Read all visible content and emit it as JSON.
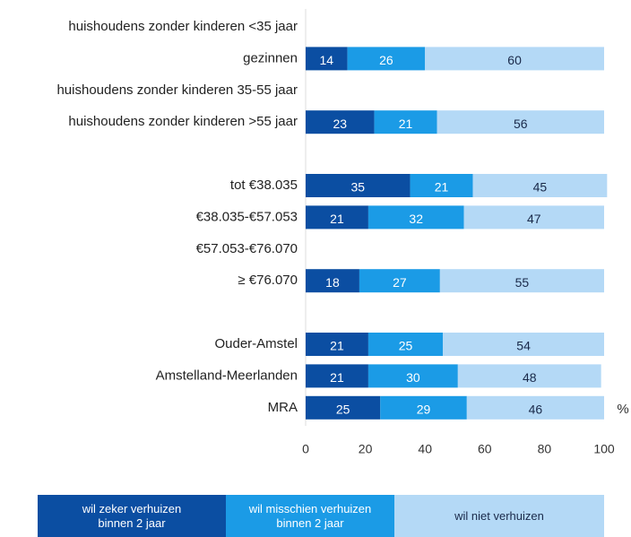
{
  "chart_data": {
    "type": "stacked_barh",
    "categories": [
      "huishoudens zonder kinderen <35 jaar",
      "gezinnen",
      "huishoudens zonder kinderen 35-55 jaar",
      "huishoudens zonder kinderen >55 jaar",
      null,
      "tot €38.035",
      "€38.035-€57.053",
      "€57.053-€76.070",
      "≥ €76.070",
      null,
      "Ouder-Amstel",
      "Amstelland-Meerlanden",
      "MRA"
    ],
    "series": [
      {
        "name": "wil zeker verhuizen binnen 2 jaar",
        "color": "#0b4ea2",
        "values": [
          null,
          14,
          null,
          23,
          null,
          35,
          21,
          null,
          18,
          null,
          21,
          21,
          25
        ]
      },
      {
        "name": "wil misschien verhuizen binnen 2 jaar",
        "color": "#1b9be6",
        "values": [
          null,
          26,
          null,
          21,
          null,
          21,
          32,
          null,
          27,
          null,
          25,
          30,
          29
        ]
      },
      {
        "name": "wil niet verhuizen",
        "color": "#b4d9f6",
        "values": [
          null,
          60,
          null,
          56,
          null,
          45,
          47,
          null,
          55,
          null,
          54,
          48,
          46
        ]
      }
    ],
    "xlim": [
      0,
      100
    ],
    "xticks": [
      0,
      20,
      40,
      60,
      80,
      100
    ],
    "xlabel": "%",
    "legend": "bottom"
  }
}
